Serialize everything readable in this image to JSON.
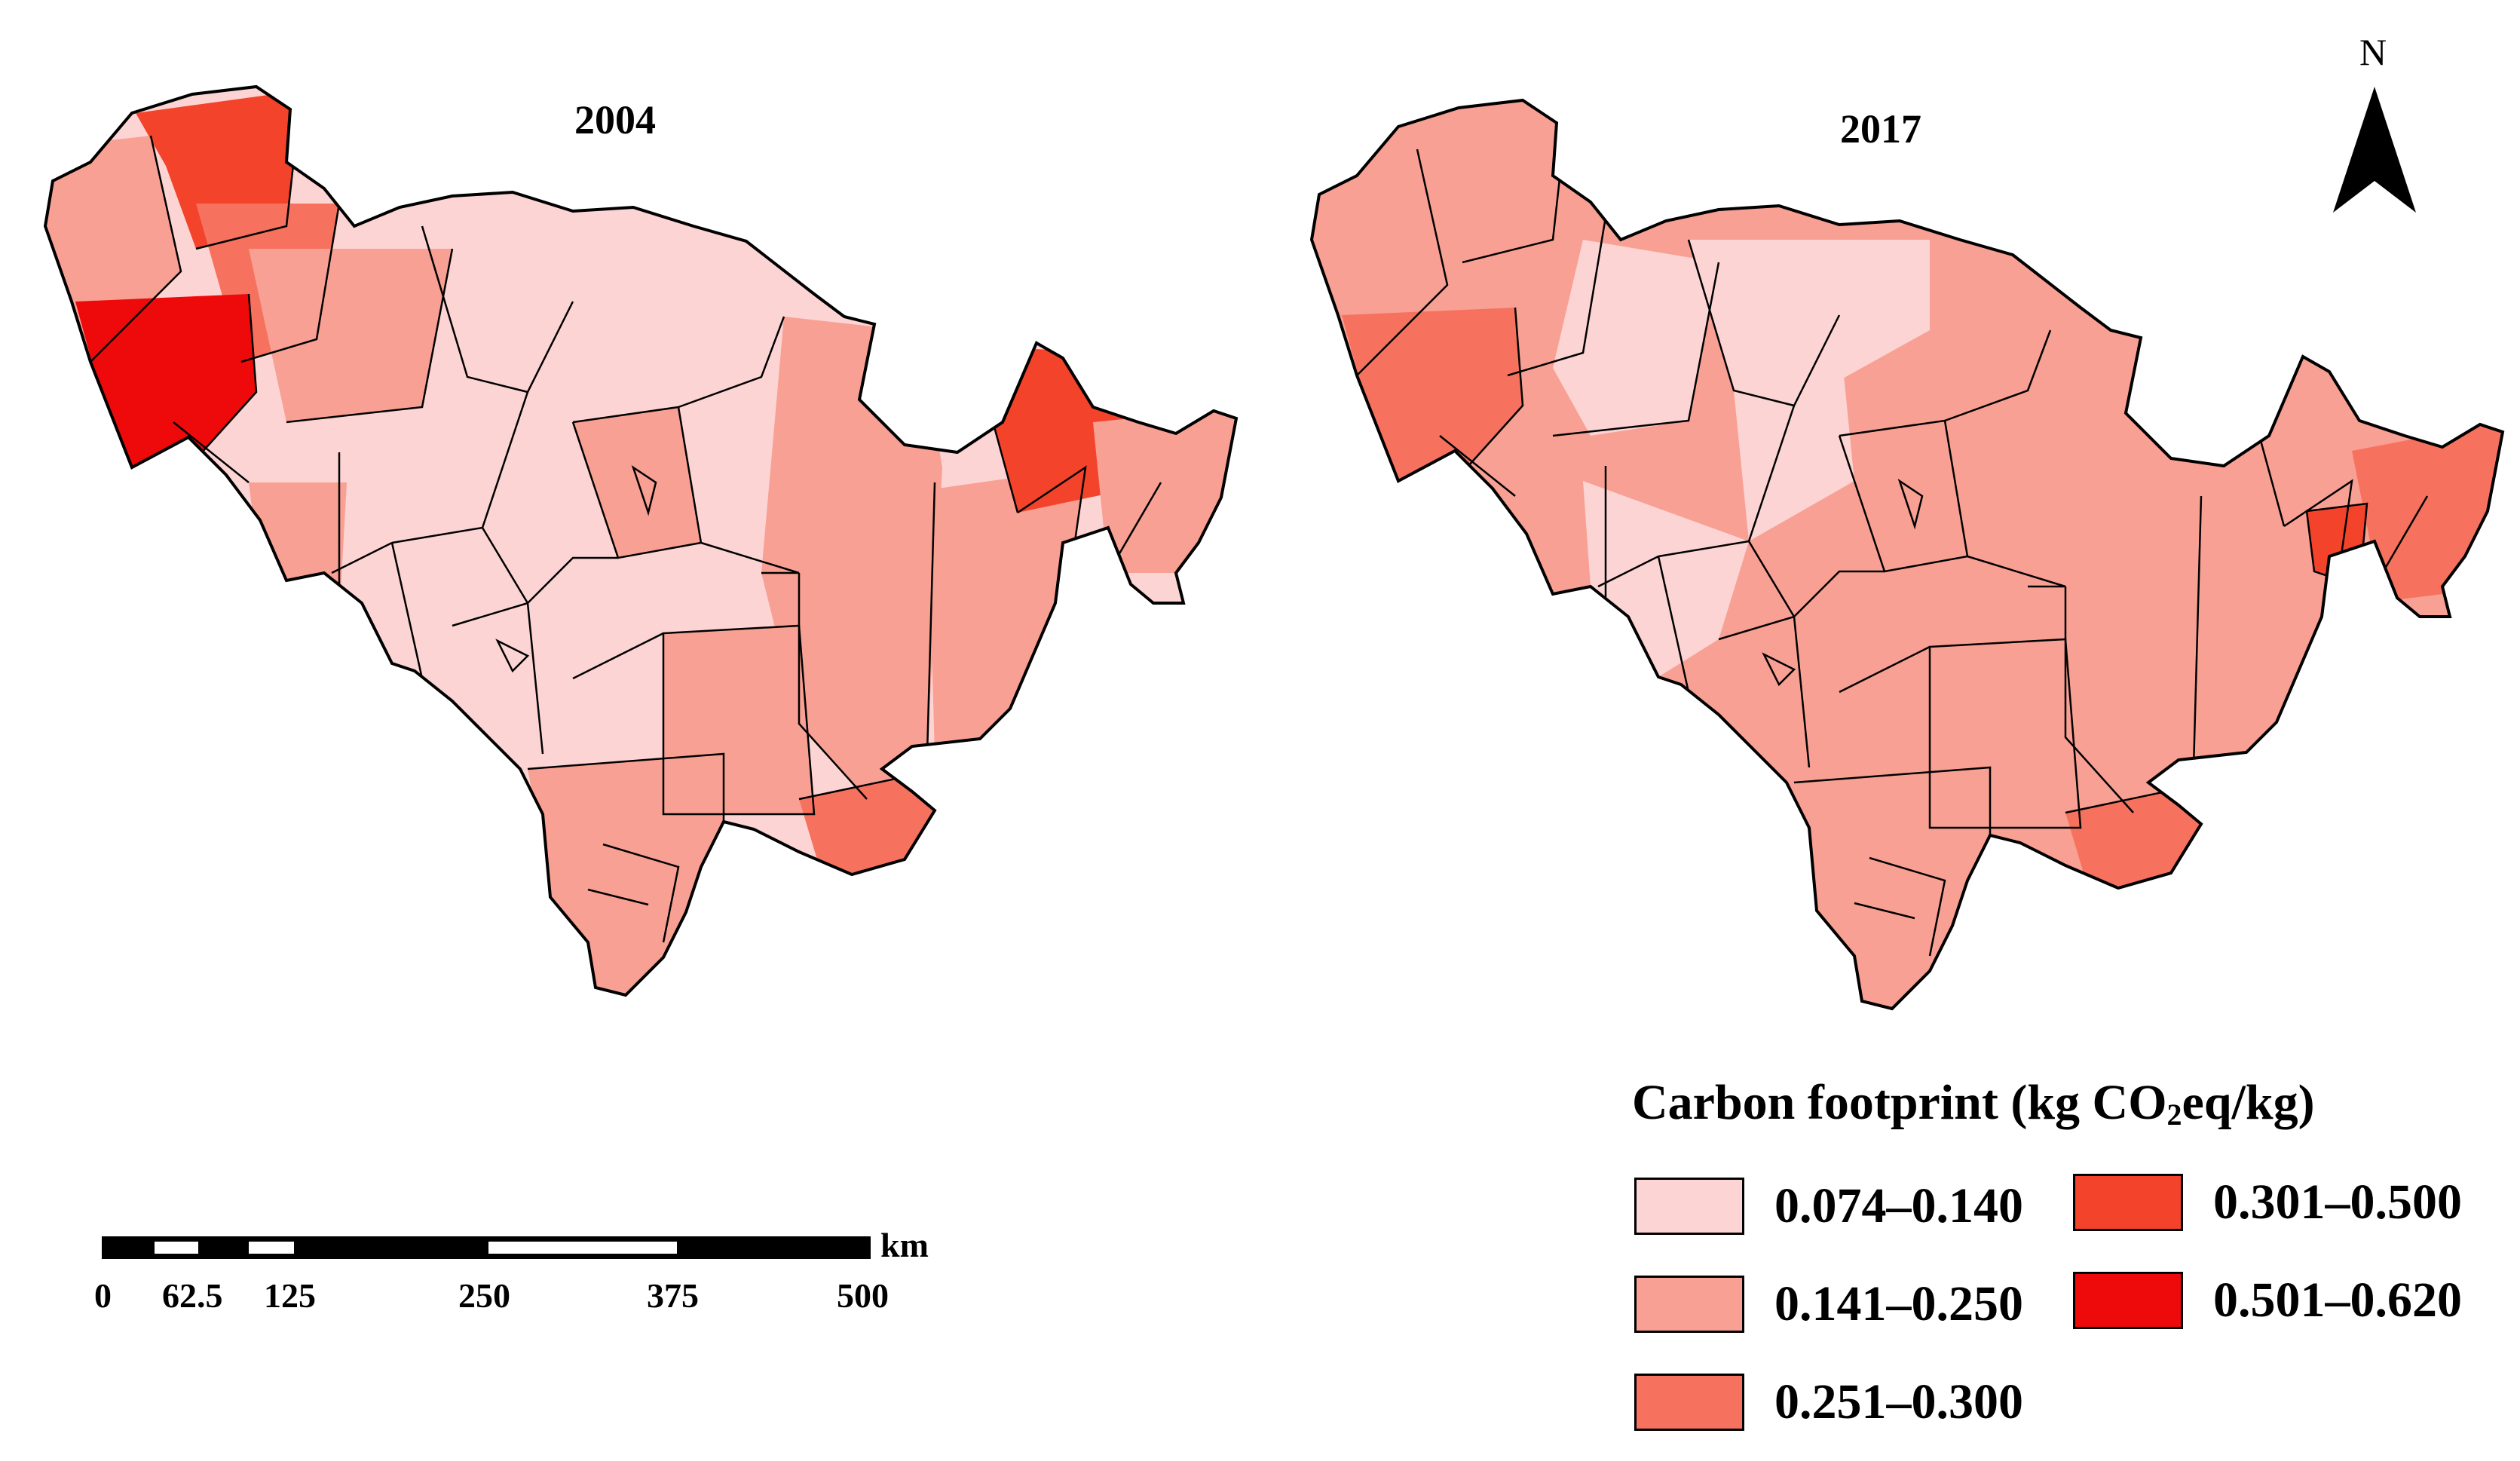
{
  "maps": [
    {
      "year": "2004"
    },
    {
      "year": "2017"
    }
  ],
  "north_arrow": {
    "label": "N"
  },
  "legend": {
    "title_main": "Carbon footprint (kg CO",
    "title_sub": "2",
    "title_end": "eq/kg)",
    "classes": [
      {
        "range": "0.074–0.140",
        "color": "#fcd4d4"
      },
      {
        "range": "0.141–0.250",
        "color": "#f8a093"
      },
      {
        "range": "0.251–0.300",
        "color": "#f6725f"
      },
      {
        "range": "0.301–0.500",
        "color": "#f3432a"
      },
      {
        "range": "0.501–0.620",
        "color": "#ee0a0a"
      }
    ]
  },
  "scale_bar": {
    "unit": "km",
    "ticks": [
      "0",
      "62.5",
      "125",
      "250",
      "375",
      "500"
    ]
  }
}
